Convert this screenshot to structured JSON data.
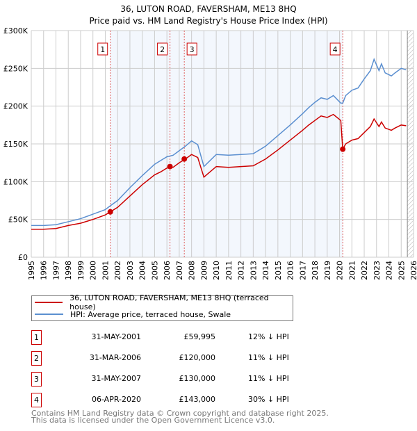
{
  "chart_data": {
    "type": "line",
    "title": "36, LUTON ROAD, FAVERSHAM, ME13 8HQ",
    "subtitle": "Price paid vs. HM Land Registry's House Price Index (HPI)",
    "xlim": [
      1995,
      2026
    ],
    "ylim": [
      0,
      300000
    ],
    "y_ticks": [
      0,
      50000,
      100000,
      150000,
      200000,
      250000,
      300000
    ],
    "y_tick_labels": [
      "£0",
      "£50K",
      "£100K",
      "£150K",
      "£200K",
      "£250K",
      "£300K"
    ],
    "x_ticks": [
      1995,
      1996,
      1997,
      1998,
      1999,
      2000,
      2001,
      2002,
      2003,
      2004,
      2005,
      2006,
      2007,
      2008,
      2009,
      2010,
      2011,
      2012,
      2013,
      2014,
      2015,
      2016,
      2017,
      2018,
      2019,
      2020,
      2021,
      2022,
      2023,
      2024,
      2025,
      2026
    ],
    "grid": true,
    "shaded_range": [
      2001.41,
      2020.26
    ],
    "hatched_from": 2025.5,
    "series": [
      {
        "name": "36, LUTON ROAD, FAVERSHAM, ME13 8HQ (terraced house)",
        "color": "#cc0000",
        "x": [
          1995,
          1996,
          1997,
          1998,
          1999,
          2000,
          2001,
          2001.4,
          2002,
          2003,
          2004,
          2005,
          2005.5,
          2006,
          2006.5,
          2007,
          2007.5,
          2008,
          2008.5,
          2009,
          2009.5,
          2010,
          2011,
          2012,
          2013,
          2014,
          2015,
          2016,
          2017,
          2017.5,
          2018,
          2018.5,
          2019,
          2019.5,
          2020.1,
          2020.26,
          2020.5,
          2021,
          2021.5,
          2022,
          2022.5,
          2022.8,
          2023.2,
          2023.4,
          2023.7,
          2024.2,
          2024.5,
          2025,
          2025.4
        ],
        "values": [
          37000,
          37000,
          38000,
          42000,
          45000,
          50000,
          56000,
          60000,
          66000,
          81000,
          96000,
          109000,
          113000,
          118000,
          119000,
          125000,
          130000,
          136000,
          132000,
          106000,
          113000,
          120000,
          119000,
          120000,
          121000,
          130000,
          142000,
          155000,
          168000,
          175000,
          181000,
          187000,
          185000,
          189000,
          181000,
          143000,
          150000,
          155000,
          157000,
          165000,
          173000,
          183000,
          173000,
          179000,
          171000,
          168000,
          171000,
          175000,
          174000
        ]
      },
      {
        "name": "HPI: Average price, terraced house, Swale",
        "color": "#5b8fd0",
        "x": [
          1995,
          1996,
          1997,
          1998,
          1999,
          2000,
          2001,
          2001.4,
          2002,
          2003,
          2004,
          2005,
          2005.5,
          2006,
          2006.5,
          2007,
          2007.5,
          2008,
          2008.5,
          2009,
          2009.5,
          2010,
          2011,
          2012,
          2013,
          2014,
          2015,
          2016,
          2017,
          2017.5,
          2018,
          2018.5,
          2019,
          2019.5,
          2020.1,
          2020.26,
          2020.5,
          2021,
          2021.5,
          2022,
          2022.5,
          2022.8,
          2023.2,
          2023.4,
          2023.7,
          2024.2,
          2024.5,
          2025,
          2025.4
        ],
        "values": [
          42000,
          42000,
          43000,
          47000,
          51000,
          57000,
          63000,
          68000,
          75000,
          92000,
          108000,
          123000,
          128000,
          133000,
          135000,
          141000,
          147000,
          154000,
          149000,
          120000,
          128000,
          136000,
          135000,
          136000,
          137000,
          147000,
          161000,
          175000,
          190000,
          198000,
          205000,
          211000,
          209000,
          214000,
          204000,
          204000,
          214000,
          221000,
          224000,
          236000,
          247000,
          262000,
          247000,
          256000,
          244000,
          240000,
          244000,
          250000,
          248000
        ]
      }
    ],
    "sales": [
      {
        "label": "1",
        "x": 2001.41,
        "value": 59995,
        "date": "31-MAY-2001",
        "price": "£59,995",
        "hpi": "12% ↓ HPI"
      },
      {
        "label": "2",
        "x": 2006.25,
        "value": 120000,
        "date": "31-MAR-2006",
        "price": "£120,000",
        "hpi": "11% ↓ HPI"
      },
      {
        "label": "3",
        "x": 2007.41,
        "value": 130000,
        "date": "31-MAY-2007",
        "price": "£130,000",
        "hpi": "11% ↓ HPI"
      },
      {
        "label": "4",
        "x": 2020.26,
        "value": 143000,
        "date": "06-APR-2020",
        "price": "£143,000",
        "hpi": "30% ↓ HPI"
      }
    ]
  },
  "footer": {
    "line1": "Contains HM Land Registry data © Crown copyright and database right 2025.",
    "line2": "This data is licensed under the Open Government Licence v3.0."
  }
}
